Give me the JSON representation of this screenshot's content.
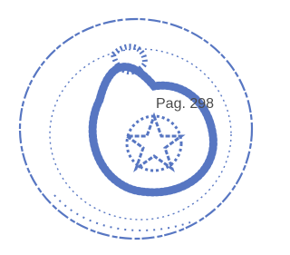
{
  "stamp": {
    "text": "Pag. 298"
  }
}
